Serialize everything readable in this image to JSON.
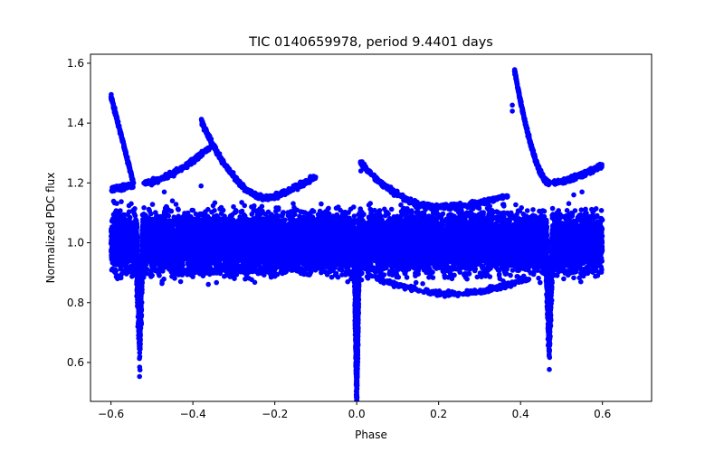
{
  "chart_data": {
    "type": "scatter",
    "title": "TIC 0140659978, period 9.4401 days",
    "xlabel": "Phase",
    "ylabel": "Normalized PDC flux",
    "xlim": [
      -0.65,
      0.72
    ],
    "ylim": [
      0.47,
      1.63
    ],
    "x_ticks": [
      -0.6,
      -0.4,
      -0.2,
      0.0,
      0.2,
      0.4,
      0.6
    ],
    "x_tick_labels": [
      "−0.6",
      "−0.4",
      "−0.2",
      "0.0",
      "0.2",
      "0.4",
      "0.6"
    ],
    "y_ticks": [
      0.6,
      0.8,
      1.0,
      1.2,
      1.4,
      1.6
    ],
    "y_tick_labels": [
      "0.6",
      "0.8",
      "1.0",
      "1.2",
      "1.4",
      "1.6"
    ],
    "grid": false,
    "marker_color": "#0000ff",
    "series": [
      {
        "description_points": [
          {
            "x": -0.6,
            "y": 1.49
          },
          {
            "x": -0.58,
            "y": 1.38
          },
          {
            "x": -0.56,
            "y": 1.28
          },
          {
            "x": -0.545,
            "y": 1.2
          },
          {
            "x": -0.6,
            "y": 1.18
          },
          {
            "x": -0.55,
            "y": 1.19
          },
          {
            "x": -0.52,
            "y": 1.2
          },
          {
            "x": -0.45,
            "y": 1.23
          },
          {
            "x": -0.4,
            "y": 1.27
          },
          {
            "x": -0.35,
            "y": 1.33
          },
          {
            "x": -0.38,
            "y": 1.41
          },
          {
            "x": -0.34,
            "y": 1.34
          },
          {
            "x": -0.3,
            "y": 1.26
          },
          {
            "x": -0.26,
            "y": 1.19
          },
          {
            "x": -0.22,
            "y": 1.15
          },
          {
            "x": -0.18,
            "y": 1.15
          },
          {
            "x": -0.14,
            "y": 1.19
          },
          {
            "x": -0.1,
            "y": 1.22
          },
          {
            "x": -0.53,
            "y": 0.68
          },
          {
            "x": 0.0,
            "y": 0.5
          },
          {
            "x": 0.47,
            "y": 0.68
          },
          {
            "x": 0.01,
            "y": 1.26
          },
          {
            "x": 0.05,
            "y": 1.2
          },
          {
            "x": 0.1,
            "y": 1.15
          },
          {
            "x": 0.15,
            "y": 1.13
          },
          {
            "x": 0.2,
            "y": 1.12
          },
          {
            "x": 0.28,
            "y": 1.12
          },
          {
            "x": 0.34,
            "y": 1.15
          },
          {
            "x": 0.38,
            "y": 1.46
          },
          {
            "x": 0.385,
            "y": 1.58
          },
          {
            "x": 0.41,
            "y": 1.45
          },
          {
            "x": 0.44,
            "y": 1.3
          },
          {
            "x": 0.47,
            "y": 1.2
          },
          {
            "x": 0.5,
            "y": 1.2
          },
          {
            "x": 0.55,
            "y": 1.21
          },
          {
            "x": 0.6,
            "y": 1.26
          },
          {
            "x": 0.05,
            "y": 0.88
          },
          {
            "x": 0.1,
            "y": 0.85
          },
          {
            "x": 0.2,
            "y": 0.84
          },
          {
            "x": 0.3,
            "y": 0.84
          },
          {
            "x": 0.4,
            "y": 0.88
          },
          {
            "x": -0.4,
            "y": 0.91
          },
          {
            "x": -0.3,
            "y": 0.9
          },
          {
            "x": -0.2,
            "y": 0.92
          },
          {
            "x": -0.6,
            "y": 0.86
          },
          {
            "x": 0.6,
            "y": 0.86
          },
          {
            "x": -0.6,
            "y": 1.14
          },
          {
            "x": 0.6,
            "y": 1.14
          }
        ]
      }
    ]
  }
}
